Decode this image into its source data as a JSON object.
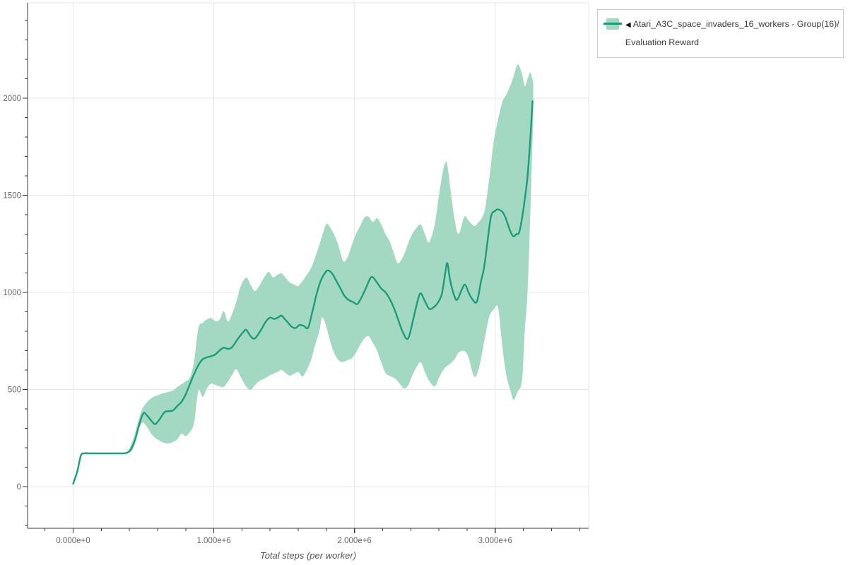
{
  "page": {
    "background": "#ffffff"
  },
  "legend": {
    "position": "top-right",
    "items": [
      {
        "marker": "◀",
        "label_line1": "Atari_A3C_space_invaders_16_workers - Group(16)/",
        "label_line2": "Evaluation Reward",
        "band_color": "#a3d8c3",
        "line_color": "#1b9e77"
      }
    ]
  },
  "chart_data": {
    "type": "line",
    "title": "",
    "xlabel": "Total steps (per worker)",
    "ylabel": "",
    "x_unit": "millions of steps",
    "xlim": [
      -0.324,
      3.664
    ],
    "ylim": [
      -215,
      2491
    ],
    "grid": true,
    "legend_position": "top-right",
    "x_major_ticks": [
      {
        "x": 0,
        "label": "0.000e+0"
      },
      {
        "x": 1,
        "label": "1.000e+6"
      },
      {
        "x": 2,
        "label": "2.000e+6"
      },
      {
        "x": 3,
        "label": "3.000e+6"
      }
    ],
    "x_minor_step": 0.2,
    "y_major_ticks": [
      {
        "v": 0,
        "label": "0"
      },
      {
        "v": 500,
        "label": "500"
      },
      {
        "v": 1000,
        "label": "1000"
      },
      {
        "v": 1500,
        "label": "1500"
      },
      {
        "v": 2000,
        "label": "2000"
      }
    ],
    "y_minor_step": 100,
    "colors": {
      "line": "#1b9e77",
      "band": "#a3d8c3",
      "grid": "#e7e7e7",
      "axis": "#3a3a3a",
      "tick_label": "#666666",
      "axis_title": "#555555"
    },
    "series": [
      {
        "name": "Atari_A3C_space_invaders_16_workers - Group(16)/Evaluation Reward (mean)",
        "type": "line",
        "x": [
          0,
          0.03,
          0.055,
          0.08,
          0.12,
          0.18,
          0.25,
          0.31,
          0.355,
          0.385,
          0.41,
          0.44,
          0.47,
          0.5,
          0.53,
          0.56,
          0.585,
          0.62,
          0.65,
          0.68,
          0.71,
          0.74,
          0.77,
          0.8,
          0.83,
          0.86,
          0.89,
          0.92,
          0.95,
          0.98,
          1.01,
          1.04,
          1.07,
          1.1,
          1.13,
          1.17,
          1.21,
          1.23,
          1.26,
          1.29,
          1.33,
          1.37,
          1.4,
          1.43,
          1.46,
          1.48,
          1.51,
          1.55,
          1.58,
          1.61,
          1.64,
          1.67,
          1.7,
          1.73,
          1.76,
          1.79,
          1.81,
          1.84,
          1.87,
          1.9,
          1.93,
          1.96,
          1.99,
          2.02,
          2.05,
          2.08,
          2.11,
          2.13,
          2.16,
          2.19,
          2.22,
          2.25,
          2.28,
          2.31,
          2.34,
          2.38,
          2.42,
          2.45,
          2.47,
          2.5,
          2.53,
          2.56,
          2.59,
          2.62,
          2.645,
          2.66,
          2.68,
          2.71,
          2.73,
          2.76,
          2.785,
          2.81,
          2.84,
          2.87,
          2.9,
          2.92,
          2.94,
          2.97,
          3.0,
          3.02,
          3.05,
          3.07,
          3.09,
          3.11,
          3.13,
          3.15,
          3.17,
          3.19,
          3.21,
          3.23,
          3.25,
          3.265
        ],
        "y": [
          15,
          80,
          160,
          171,
          171,
          171,
          171,
          171,
          171,
          175,
          192,
          240,
          320,
          378,
          362,
          335,
          322,
          352,
          383,
          388,
          392,
          415,
          436,
          475,
          528,
          580,
          625,
          655,
          665,
          671,
          680,
          700,
          715,
          709,
          718,
          760,
          796,
          807,
          775,
          762,
          800,
          850,
          870,
          863,
          872,
          880,
          858,
          825,
          816,
          832,
          827,
          818,
          900,
          990,
          1060,
          1100,
          1113,
          1098,
          1060,
          1020,
          980,
          960,
          950,
          940,
          975,
          1020,
          1070,
          1078,
          1050,
          1020,
          1000,
          966,
          920,
          860,
          800,
          762,
          870,
          960,
          995,
          955,
          915,
          922,
          945,
          990,
          1100,
          1150,
          1060,
          980,
          962,
          1010,
          1040,
          1000,
          962,
          953,
          1060,
          1124,
          1233,
          1390,
          1420,
          1427,
          1415,
          1390,
          1350,
          1310,
          1288,
          1300,
          1308,
          1380,
          1480,
          1600,
          1800,
          1985
        ]
      },
      {
        "name": "Atari_A3C_space_invaders_16_workers - Group(16)/Evaluation Reward (min-max band)",
        "type": "band",
        "x": [
          0.4,
          0.43,
          0.46,
          0.49,
          0.52,
          0.55,
          0.58,
          0.61,
          0.64,
          0.68,
          0.71,
          0.74,
          0.77,
          0.8,
          0.83,
          0.86,
          0.89,
          0.92,
          0.95,
          0.98,
          1.01,
          1.04,
          1.07,
          1.1,
          1.13,
          1.16,
          1.19,
          1.23,
          1.26,
          1.29,
          1.32,
          1.36,
          1.39,
          1.42,
          1.45,
          1.48,
          1.51,
          1.54,
          1.57,
          1.6,
          1.63,
          1.66,
          1.69,
          1.72,
          1.75,
          1.77,
          1.8,
          1.83,
          1.86,
          1.89,
          1.92,
          1.95,
          1.98,
          2.01,
          2.04,
          2.07,
          2.1,
          2.13,
          2.16,
          2.19,
          2.22,
          2.25,
          2.28,
          2.31,
          2.35,
          2.38,
          2.41,
          2.44,
          2.47,
          2.5,
          2.53,
          2.57,
          2.6,
          2.63,
          2.655,
          2.68,
          2.71,
          2.74,
          2.78,
          2.81,
          2.85,
          2.88,
          2.91,
          2.93,
          2.96,
          2.99,
          3.02,
          3.05,
          3.08,
          3.11,
          3.13,
          3.16,
          3.19,
          3.21,
          3.23,
          3.25,
          3.27
        ],
        "lo": [
          170,
          200,
          280,
          328,
          312,
          278,
          252,
          238,
          226,
          222,
          230,
          243,
          272,
          260,
          282,
          330,
          494,
          462,
          505,
          530,
          524,
          516,
          513,
          540,
          575,
          604,
          565,
          515,
          498,
          520,
          542,
          556,
          570,
          580,
          590,
          600,
          585,
          571,
          580,
          589,
          567,
          600,
          650,
          730,
          800,
          872,
          820,
          740,
          680,
          648,
          642,
          652,
          660,
          690,
          730,
          762,
          775,
          740,
          700,
          640,
          585,
          570,
          560,
          540,
          505,
          520,
          570,
          615,
          640,
          590,
          545,
          516,
          560,
          600,
          620,
          632,
          655,
          690,
          698,
          665,
          567,
          600,
          700,
          780,
          880,
          912,
          920,
          724,
          570,
          490,
          447,
          490,
          545,
          800,
          1010,
          1420,
          1900
        ],
        "hi": [
          192,
          252,
          330,
          398,
          430,
          452,
          465,
          472,
          480,
          488,
          495,
          512,
          527,
          542,
          562,
          645,
          815,
          842,
          860,
          868,
          852,
          858,
          903,
          850,
          890,
          952,
          1030,
          1076,
          1040,
          1007,
          1030,
          1080,
          1105,
          1078,
          1090,
          1098,
          1075,
          1051,
          1040,
          1033,
          1058,
          1090,
          1124,
          1180,
          1245,
          1292,
          1352,
          1330,
          1290,
          1230,
          1160,
          1180,
          1242,
          1300,
          1342,
          1385,
          1390,
          1362,
          1382,
          1350,
          1300,
          1262,
          1200,
          1150,
          1192,
          1250,
          1300,
          1332,
          1349,
          1300,
          1258,
          1350,
          1500,
          1630,
          1669,
          1540,
          1380,
          1300,
          1390,
          1370,
          1342,
          1360,
          1390,
          1440,
          1600,
          1780,
          1890,
          1980,
          2020,
          2070,
          2110,
          2174,
          2125,
          2062,
          2100,
          2131,
          2080
        ]
      }
    ]
  }
}
